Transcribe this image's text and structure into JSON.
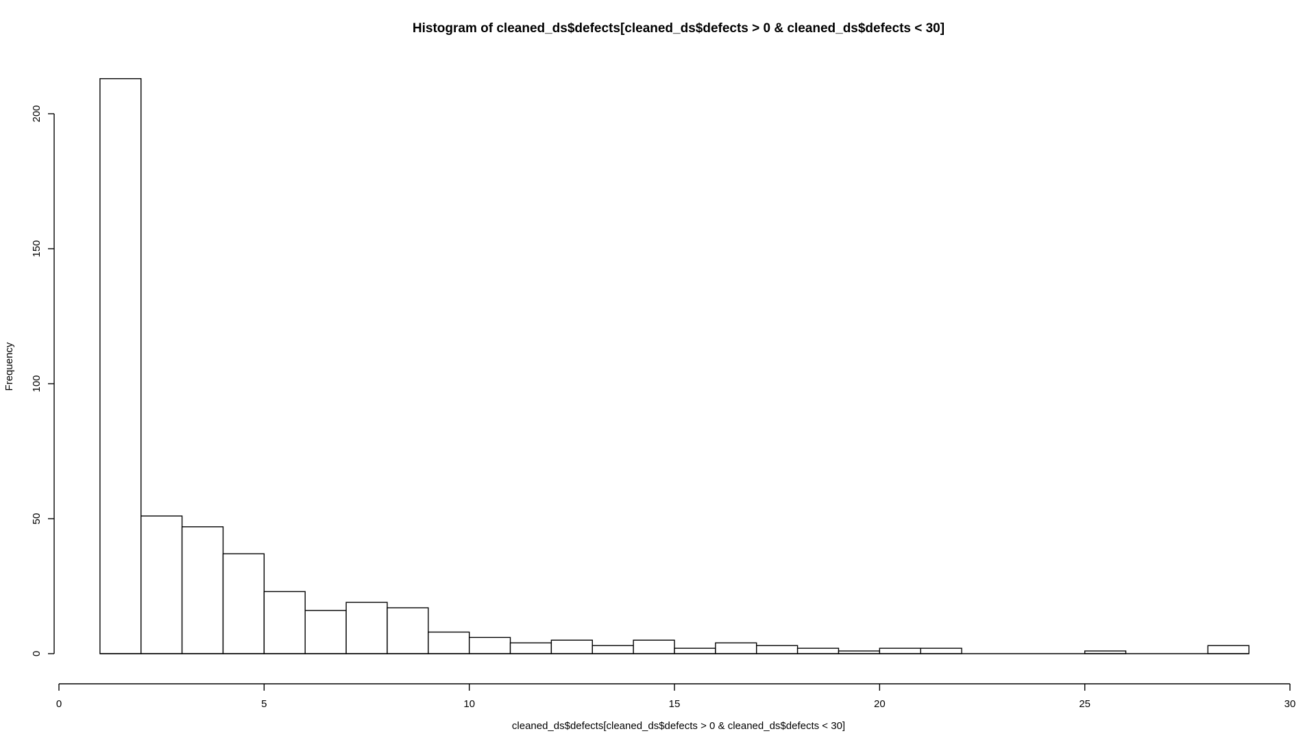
{
  "chart_data": {
    "type": "bar",
    "title": "Histogram of cleaned_ds$defects[cleaned_ds$defects > 0 & cleaned_ds$defects < 30]",
    "xlabel": "cleaned_ds$defects[cleaned_ds$defects > 0 & cleaned_ds$defects < 30]",
    "ylabel": "Frequency",
    "xlim": [
      0,
      30
    ],
    "ylim": [
      0,
      213
    ],
    "x_ticks": [
      0,
      5,
      10,
      15,
      20,
      25,
      30
    ],
    "y_ticks": [
      0,
      50,
      100,
      150,
      200
    ],
    "grid": false,
    "bins": [
      {
        "x0": 1,
        "x1": 2,
        "value": 213
      },
      {
        "x0": 2,
        "x1": 3,
        "value": 51
      },
      {
        "x0": 3,
        "x1": 4,
        "value": 47
      },
      {
        "x0": 4,
        "x1": 5,
        "value": 37
      },
      {
        "x0": 5,
        "x1": 6,
        "value": 23
      },
      {
        "x0": 6,
        "x1": 7,
        "value": 16
      },
      {
        "x0": 7,
        "x1": 8,
        "value": 19
      },
      {
        "x0": 8,
        "x1": 9,
        "value": 17
      },
      {
        "x0": 9,
        "x1": 10,
        "value": 8
      },
      {
        "x0": 10,
        "x1": 11,
        "value": 6
      },
      {
        "x0": 11,
        "x1": 12,
        "value": 4
      },
      {
        "x0": 12,
        "x1": 13,
        "value": 5
      },
      {
        "x0": 13,
        "x1": 14,
        "value": 3
      },
      {
        "x0": 14,
        "x1": 15,
        "value": 5
      },
      {
        "x0": 15,
        "x1": 16,
        "value": 2
      },
      {
        "x0": 16,
        "x1": 17,
        "value": 4
      },
      {
        "x0": 17,
        "x1": 18,
        "value": 3
      },
      {
        "x0": 18,
        "x1": 19,
        "value": 2
      },
      {
        "x0": 19,
        "x1": 20,
        "value": 1
      },
      {
        "x0": 20,
        "x1": 21,
        "value": 2
      },
      {
        "x0": 21,
        "x1": 22,
        "value": 2
      },
      {
        "x0": 22,
        "x1": 23,
        "value": 0
      },
      {
        "x0": 23,
        "x1": 24,
        "value": 0
      },
      {
        "x0": 24,
        "x1": 25,
        "value": 0
      },
      {
        "x0": 25,
        "x1": 26,
        "value": 1
      },
      {
        "x0": 26,
        "x1": 27,
        "value": 0
      },
      {
        "x0": 27,
        "x1": 28,
        "value": 0
      },
      {
        "x0": 28,
        "x1": 29,
        "value": 3
      }
    ]
  }
}
